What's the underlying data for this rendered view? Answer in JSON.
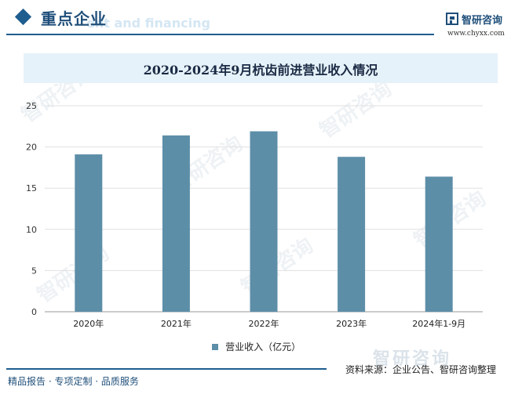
{
  "header": {
    "section_title": "重点企业",
    "ghost_text": "ent and financing",
    "brand_name": "智研咨询",
    "brand_url": "www.chyxx.com"
  },
  "watermark": {
    "text": "智研咨询",
    "footer_brand": "智研咨询"
  },
  "chart_data": {
    "type": "bar",
    "title": "2020-2024年9月杭齿前进营业收入情况",
    "categories": [
      "2020年",
      "2021年",
      "2022年",
      "2023年",
      "2024年1-9月"
    ],
    "series": [
      {
        "name": "营业收入（亿元）",
        "values": [
          19.1,
          21.4,
          21.9,
          18.8,
          16.4
        ],
        "color": "#5d8ea8"
      }
    ],
    "ylim": [
      0,
      25
    ],
    "yticks": [
      0,
      5,
      10,
      15,
      20,
      25
    ],
    "grid": true,
    "legend": "bottom"
  },
  "footer": {
    "left_text": "精品报告 · 专项定制 · 品质服务",
    "source_text": "资料来源：企业公告、智研咨询整理"
  }
}
